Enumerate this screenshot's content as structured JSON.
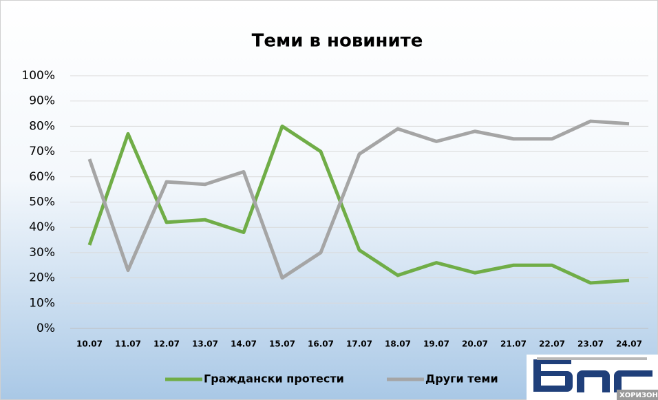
{
  "chart_data": {
    "type": "line",
    "title": "Теми в новините",
    "categories": [
      "10.07",
      "11.07",
      "12.07",
      "13.07",
      "14.07",
      "15.07",
      "16.07",
      "17.07",
      "18.07",
      "19.07",
      "20.07",
      "21.07",
      "22.07",
      "23.07",
      "24.07"
    ],
    "series": [
      {
        "name": "Граждански протести",
        "color": "#70ad47",
        "values": [
          33,
          77,
          42,
          43,
          38,
          80,
          70,
          31,
          21,
          26,
          22,
          25,
          25,
          18,
          19
        ]
      },
      {
        "name": "Други теми",
        "color": "#a5a5a5",
        "values": [
          67,
          23,
          58,
          57,
          62,
          20,
          30,
          69,
          79,
          74,
          78,
          75,
          75,
          82,
          81
        ]
      }
    ],
    "ylim": [
      0,
      100
    ],
    "yticks": [
      {
        "value": 0,
        "label": "0%"
      },
      {
        "value": 10,
        "label": "10%"
      },
      {
        "value": 20,
        "label": "20%"
      },
      {
        "value": 30,
        "label": "30%"
      },
      {
        "value": 40,
        "label": "40%"
      },
      {
        "value": 50,
        "label": "50%"
      },
      {
        "value": 60,
        "label": "60%"
      },
      {
        "value": 70,
        "label": "70%"
      },
      {
        "value": 80,
        "label": "80%"
      },
      {
        "value": 90,
        "label": "90%"
      },
      {
        "value": 100,
        "label": "100%"
      }
    ],
    "grid": true,
    "legend": "bottom"
  },
  "logo": {
    "text": "ХОРИЗОН"
  }
}
